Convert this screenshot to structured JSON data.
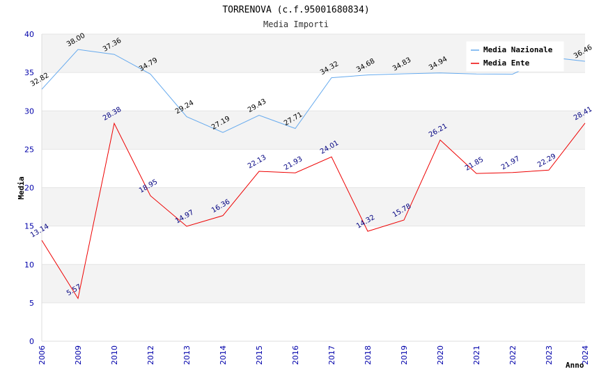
{
  "chart_data": {
    "type": "line",
    "title": "TORRENOVA (c.f.95001680834)",
    "subtitle": "Media Importi",
    "ylabel": "Media",
    "xlabel": "Anno",
    "ylim": [
      0,
      40
    ],
    "yticks": [
      0,
      5,
      10,
      15,
      20,
      25,
      30,
      35,
      40
    ],
    "grid": true,
    "legend_position": "top-right",
    "categories": [
      "2006",
      "2009",
      "2010",
      "2012",
      "2013",
      "2014",
      "2015",
      "2016",
      "2017",
      "2018",
      "2019",
      "2020",
      "2021",
      "2022",
      "2023",
      "2024"
    ],
    "series": [
      {
        "name": "Media Nazionale",
        "color": "#66aaee",
        "label_color": "#000000",
        "values": [
          32.82,
          38.0,
          37.36,
          34.79,
          29.24,
          27.19,
          29.43,
          27.71,
          34.32,
          34.68,
          34.83,
          34.94,
          34.81,
          34.79,
          37.0,
          36.46
        ],
        "labels": [
          "32.82",
          "38.00",
          "37.36",
          "34.79",
          "29.24",
          "27.19",
          "29.43",
          "27.71",
          "34.32",
          "34.68",
          "34.83",
          "34.94",
          "",
          "",
          "",
          "36.46"
        ]
      },
      {
        "name": "Media Ente",
        "color": "#ee0000",
        "label_color": "#000080",
        "values": [
          13.14,
          5.57,
          28.38,
          18.95,
          14.97,
          16.36,
          22.13,
          21.93,
          24.01,
          14.32,
          15.78,
          26.21,
          21.85,
          21.97,
          22.29,
          28.41
        ],
        "labels": [
          "13.14",
          "5.57",
          "28.38",
          "18.95",
          "14.97",
          "16.36",
          "22.13",
          "21.93",
          "24.01",
          "14.32",
          "15.78",
          "26.21",
          "21.85",
          "21.97",
          "22.29",
          "28.41"
        ]
      }
    ]
  }
}
